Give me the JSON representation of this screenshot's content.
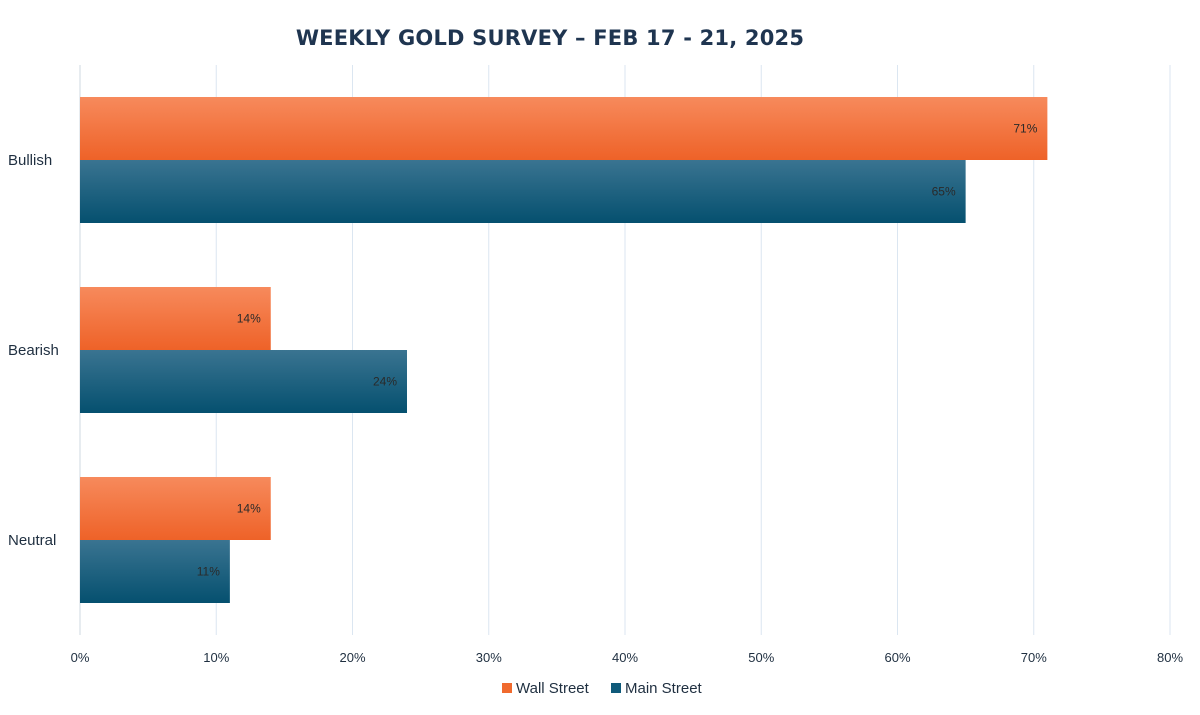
{
  "chart_data": {
    "type": "bar",
    "orientation": "horizontal",
    "title": "WEEKLY GOLD SURVEY – FEB 17 - 21, 2025",
    "categories": [
      "Bullish",
      "Bearish",
      "Neutral"
    ],
    "series": [
      {
        "name": "Wall Street",
        "values": [
          71,
          14,
          14
        ],
        "color": "#f06a2e"
      },
      {
        "name": "Main Street",
        "values": [
          65,
          24,
          11
        ],
        "color": "#0f5a7a"
      }
    ],
    "data_labels": [
      [
        "71%",
        "14%",
        "14%"
      ],
      [
        "65%",
        "24%",
        "11%"
      ]
    ],
    "xlim": [
      0,
      80
    ],
    "x_ticks": [
      "0%",
      "10%",
      "20%",
      "30%",
      "40%",
      "50%",
      "60%",
      "70%",
      "80%"
    ],
    "grid": true,
    "legend_position": "bottom"
  }
}
